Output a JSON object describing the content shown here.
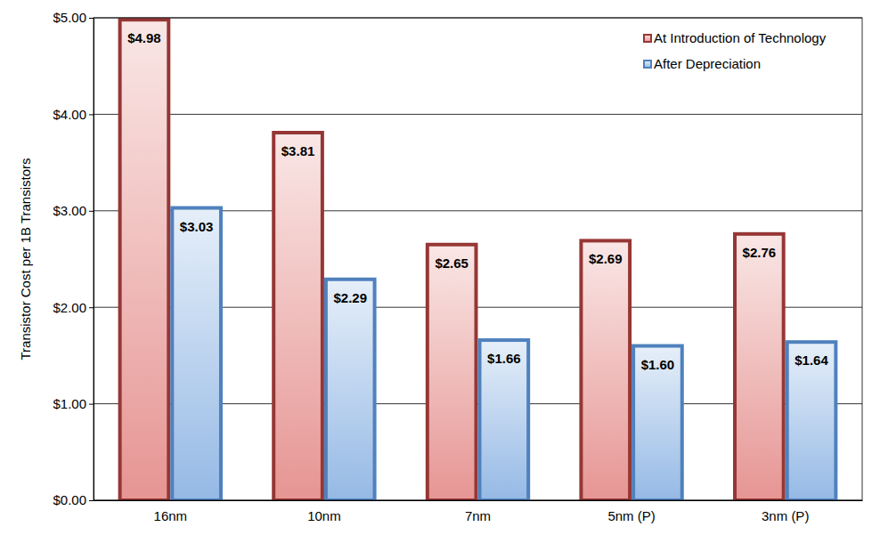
{
  "chart_data": {
    "type": "bar",
    "y_label": "Transistor Cost per 1B Transistors",
    "categories": [
      "16nm",
      "10nm",
      "7nm",
      "5nm (P)",
      "3nm (P)"
    ],
    "series": [
      {
        "name": "At Introduction of Technology",
        "color": "#953735",
        "values": [
          4.98,
          3.81,
          2.65,
          2.69,
          2.76
        ],
        "value_labels": [
          "$4.98",
          "$3.81",
          "$2.65",
          "$2.69",
          "$2.76"
        ]
      },
      {
        "name": "After Depreciation",
        "color": "#4f81bd",
        "values": [
          3.03,
          2.29,
          1.66,
          1.6,
          1.64
        ],
        "value_labels": [
          "$3.03",
          "$2.29",
          "$1.66",
          "$1.60",
          "$1.64"
        ]
      }
    ],
    "ylim": [
      0,
      5
    ],
    "yticks": [
      {
        "value": 0,
        "label": "$0.00"
      },
      {
        "value": 1,
        "label": "$1.00"
      },
      {
        "value": 2,
        "label": "$2.00"
      },
      {
        "value": 3,
        "label": "$3.00"
      },
      {
        "value": 4,
        "label": "$4.00"
      },
      {
        "value": 5,
        "label": "$5.00"
      }
    ],
    "grid": true,
    "legend": "top-right",
    "data_labels": true
  }
}
